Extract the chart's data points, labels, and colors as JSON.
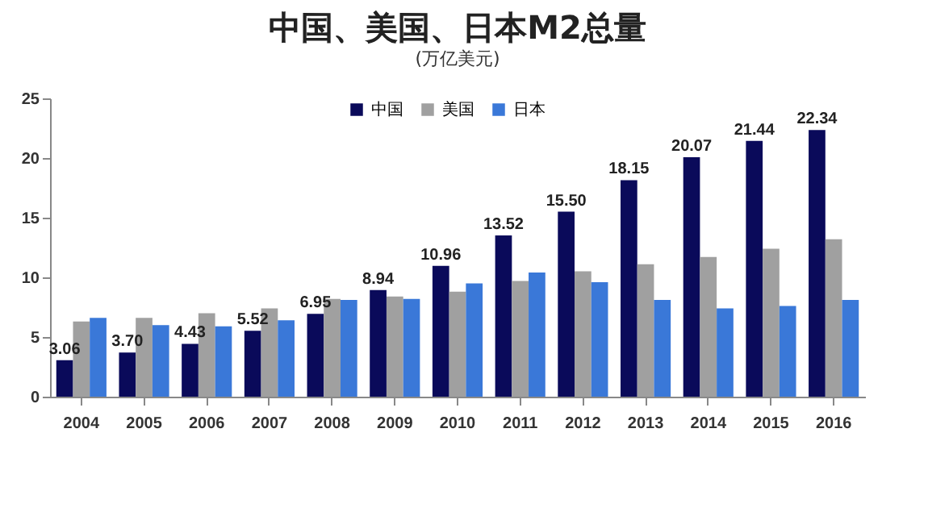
{
  "chart_data": {
    "type": "bar",
    "title": "中国、美国、日本M2总量",
    "subtitle": "(万亿美元)",
    "categories": [
      "2004",
      "2005",
      "2006",
      "2007",
      "2008",
      "2009",
      "2010",
      "2011",
      "2012",
      "2013",
      "2014",
      "2015",
      "2016"
    ],
    "series": [
      {
        "name": "中国",
        "color": "#0a0a5a",
        "values": [
          3.06,
          3.7,
          4.43,
          5.52,
          6.95,
          8.94,
          10.96,
          13.52,
          15.5,
          18.15,
          20.07,
          21.44,
          22.34
        ],
        "value_labels": [
          "3.06",
          "3.70",
          "4.43",
          "5.52",
          "6.95",
          "8.94",
          "10.96",
          "13.52",
          "15.50",
          "18.15",
          "20.07",
          "21.44",
          "22.34"
        ]
      },
      {
        "name": "美国",
        "color": "#a0a0a0",
        "values": [
          6.3,
          6.6,
          7.0,
          7.4,
          8.2,
          8.4,
          8.8,
          9.7,
          10.5,
          11.1,
          11.7,
          12.4,
          13.2
        ]
      },
      {
        "name": "日本",
        "color": "#3a78d8",
        "values": [
          6.6,
          6.0,
          5.9,
          6.4,
          8.1,
          8.2,
          9.5,
          10.4,
          9.6,
          8.1,
          7.4,
          7.6,
          8.1
        ]
      }
    ],
    "ylim": [
      0,
      25
    ],
    "yticks": [
      0,
      5,
      10,
      15,
      20,
      25
    ],
    "grid": false,
    "legend": "top"
  }
}
